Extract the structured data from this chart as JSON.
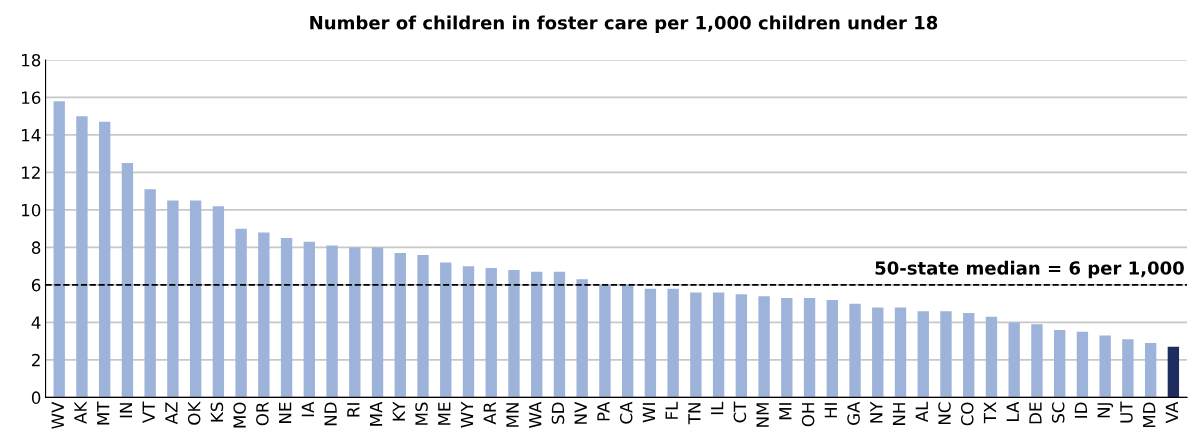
{
  "chart_data": {
    "type": "bar",
    "title": "Number of children in foster care per 1,000 children under 18",
    "categories": [
      "WV",
      "AK",
      "MT",
      "IN",
      "VT",
      "AZ",
      "OK",
      "KS",
      "MO",
      "OR",
      "NE",
      "IA",
      "ND",
      "RI",
      "MA",
      "KY",
      "MS",
      "ME",
      "WY",
      "AR",
      "MN",
      "WA",
      "SD",
      "NV",
      "PA",
      "CA",
      "WI",
      "FL",
      "TN",
      "IL",
      "CT",
      "NM",
      "MI",
      "OH",
      "HI",
      "GA",
      "NY",
      "NH",
      "AL",
      "NC",
      "CO",
      "TX",
      "LA",
      "DE",
      "SC",
      "ID",
      "NJ",
      "UT",
      "MD",
      "VA"
    ],
    "values": [
      15.8,
      15.0,
      14.7,
      12.5,
      11.1,
      10.5,
      10.5,
      10.2,
      9.0,
      8.8,
      8.5,
      8.3,
      8.1,
      8.0,
      8.0,
      7.7,
      7.6,
      7.2,
      7.0,
      6.9,
      6.8,
      6.7,
      6.7,
      6.3,
      6.0,
      6.0,
      5.8,
      5.8,
      5.6,
      5.6,
      5.5,
      5.4,
      5.3,
      5.3,
      5.2,
      5.0,
      4.8,
      4.8,
      4.6,
      4.6,
      4.5,
      4.3,
      4.0,
      3.9,
      3.6,
      3.5,
      3.3,
      3.1,
      2.9,
      2.7
    ],
    "colors": [
      "#9eb3d9",
      "#9eb3d9",
      "#9eb3d9",
      "#9eb3d9",
      "#9eb3d9",
      "#9eb3d9",
      "#9eb3d9",
      "#9eb3d9",
      "#9eb3d9",
      "#9eb3d9",
      "#9eb3d9",
      "#9eb3d9",
      "#9eb3d9",
      "#9eb3d9",
      "#9eb3d9",
      "#9eb3d9",
      "#9eb3d9",
      "#9eb3d9",
      "#9eb3d9",
      "#9eb3d9",
      "#9eb3d9",
      "#9eb3d9",
      "#9eb3d9",
      "#9eb3d9",
      "#9eb3d9",
      "#9eb3d9",
      "#9eb3d9",
      "#9eb3d9",
      "#9eb3d9",
      "#9eb3d9",
      "#9eb3d9",
      "#9eb3d9",
      "#9eb3d9",
      "#9eb3d9",
      "#9eb3d9",
      "#9eb3d9",
      "#9eb3d9",
      "#9eb3d9",
      "#9eb3d9",
      "#9eb3d9",
      "#9eb3d9",
      "#9eb3d9",
      "#9eb3d9",
      "#9eb3d9",
      "#9eb3d9",
      "#9eb3d9",
      "#9eb3d9",
      "#9eb3d9",
      "#9eb3d9",
      "#1f2d5e"
    ],
    "ylim": [
      0,
      18
    ],
    "yticks": [
      0,
      2,
      4,
      6,
      8,
      10,
      12,
      14,
      16,
      18
    ],
    "grid": "y",
    "ref_lines": [
      {
        "axis": "y",
        "value": 6,
        "label": "50-state median = 6 per 1,000",
        "color": "#000000",
        "line_style": "dashed"
      }
    ]
  }
}
